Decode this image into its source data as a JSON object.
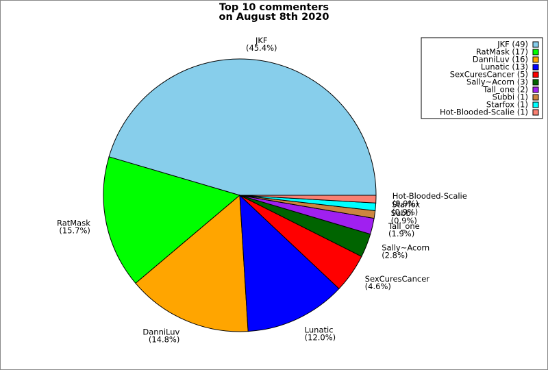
{
  "chart_data": {
    "type": "pie",
    "title": [
      "Top 10 commenters",
      "on August 8th 2020"
    ],
    "categories": [
      "JKF",
      "RatMask",
      "DanniLuv",
      "Lunatic",
      "SexCuresCancer",
      "Sally~Acorn",
      "Tall_one",
      "Subbi",
      "Starfox",
      "Hot-Blooded-Scalie"
    ],
    "values": [
      45.4,
      15.7,
      14.8,
      12.0,
      4.6,
      2.8,
      1.9,
      0.9,
      0.9,
      0.9
    ],
    "value_labels": [
      "(45.4%)",
      "(15.7%)",
      "(14.8%)",
      "(12.0%)",
      "(4.6%)",
      "(2.8%)",
      "(1.9%)",
      "(0.9%)",
      "(0.9%)",
      "(0.9%)"
    ],
    "colors": [
      "#87ceeb",
      "#00ff00",
      "#ffa500",
      "#0000ff",
      "#ff0000",
      "#006400",
      "#a020f0",
      "#cd853f",
      "#00ffff",
      "#fa8072"
    ],
    "legend_labels": [
      "JKF (49)",
      "RatMask (17)",
      "DanniLuv (16)",
      "Lunatic (13)",
      "SexCuresCancer (5)",
      "Sally~Acorn (3)",
      "Tall_one (2)",
      "Subbi (1)",
      "Starfox (1)",
      "Hot-Blooded-Scalie (1)"
    ],
    "legend": "upper right"
  }
}
